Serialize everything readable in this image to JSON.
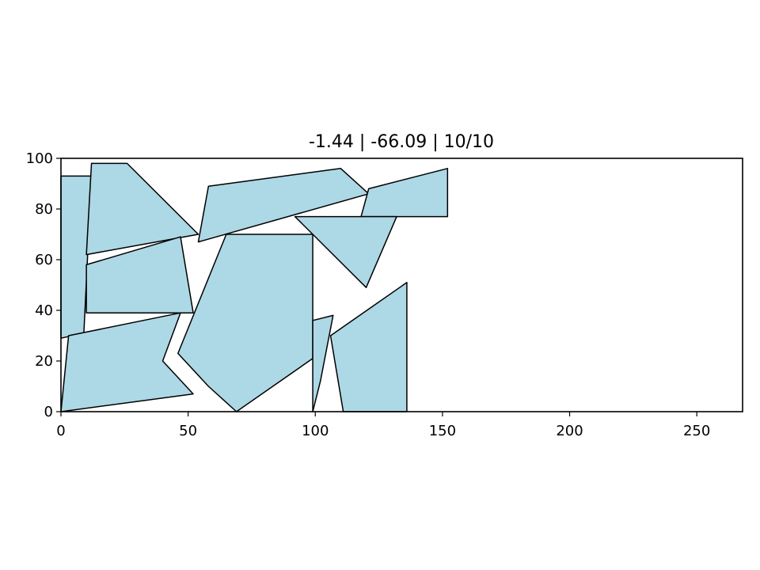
{
  "chart_data": {
    "type": "polygon-packing",
    "title": "-1.44 | -66.09 | 10/10",
    "xlim": [
      0,
      268
    ],
    "ylim": [
      0,
      100
    ],
    "xticks": [
      0,
      50,
      100,
      150,
      200,
      250
    ],
    "yticks": [
      0,
      20,
      40,
      60,
      80,
      100
    ],
    "grid": false,
    "fill_color": "#add8e6",
    "edge_color": "#000000",
    "polygons": [
      {
        "id": "p1",
        "points": [
          [
            0,
            93
          ],
          [
            12,
            93
          ],
          [
            9,
            31
          ],
          [
            0,
            29
          ]
        ]
      },
      {
        "id": "p2",
        "points": [
          [
            12,
            98
          ],
          [
            26,
            98
          ],
          [
            54,
            70
          ],
          [
            10,
            62
          ]
        ]
      },
      {
        "id": "p3",
        "points": [
          [
            10,
            58
          ],
          [
            47,
            69
          ],
          [
            52,
            39
          ],
          [
            10,
            39
          ]
        ]
      },
      {
        "id": "p4",
        "points": [
          [
            3,
            30
          ],
          [
            47,
            39
          ],
          [
            40,
            20
          ],
          [
            52,
            7
          ],
          [
            0,
            0
          ]
        ]
      },
      {
        "id": "p5",
        "points": [
          [
            58,
            89
          ],
          [
            110,
            96
          ],
          [
            121,
            86
          ],
          [
            54,
            67
          ]
        ]
      },
      {
        "id": "p6",
        "points": [
          [
            121,
            88
          ],
          [
            152,
            96
          ],
          [
            152,
            77
          ],
          [
            118,
            77
          ]
        ]
      },
      {
        "id": "p7",
        "points": [
          [
            92,
            77
          ],
          [
            132,
            77
          ],
          [
            120,
            49
          ]
        ]
      },
      {
        "id": "p8",
        "points": [
          [
            65,
            70
          ],
          [
            99,
            70
          ],
          [
            99,
            21
          ],
          [
            69,
            0
          ],
          [
            58,
            10
          ],
          [
            46,
            23
          ]
        ]
      },
      {
        "id": "p9",
        "points": [
          [
            99,
            36
          ],
          [
            107,
            38
          ],
          [
            102,
            12
          ],
          [
            99,
            0
          ]
        ]
      },
      {
        "id": "p10",
        "points": [
          [
            106,
            30
          ],
          [
            136,
            51
          ],
          [
            136,
            0
          ],
          [
            111,
            0
          ]
        ]
      }
    ]
  }
}
